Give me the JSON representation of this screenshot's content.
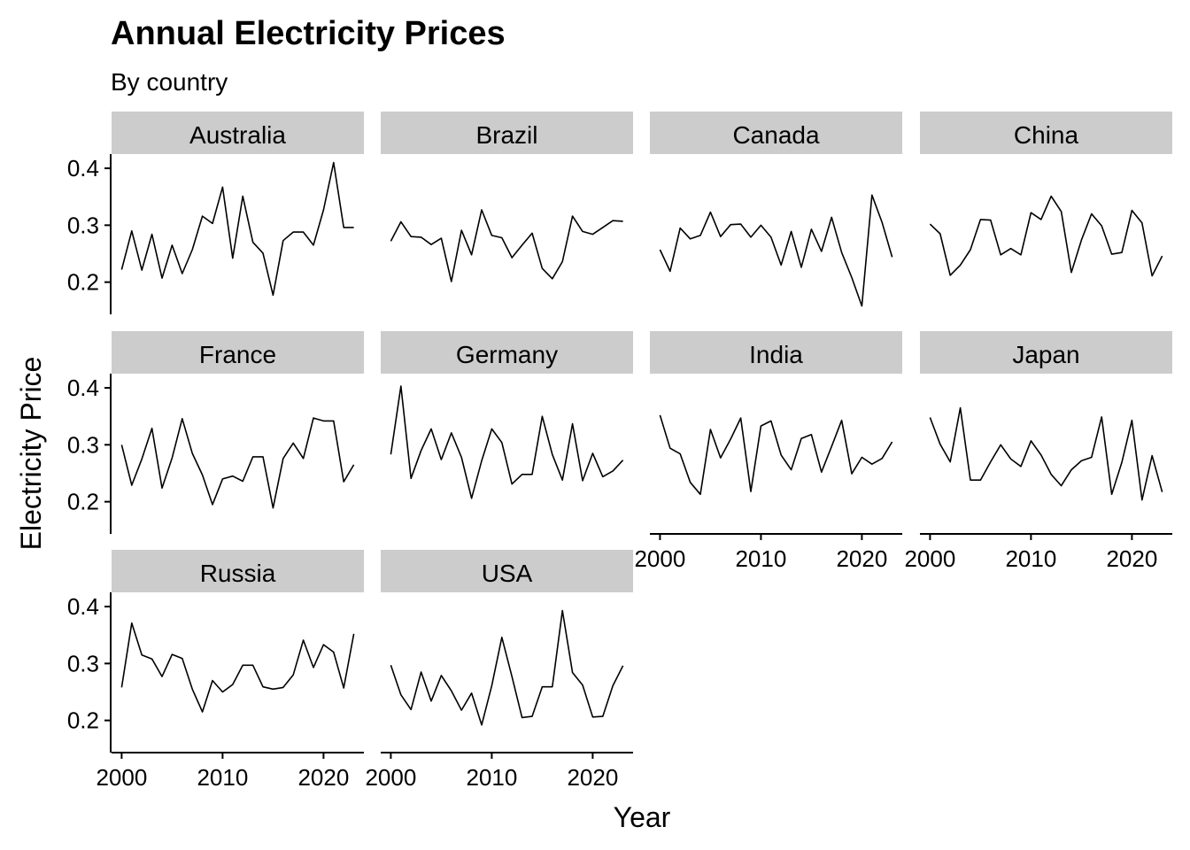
{
  "chart_data": {
    "type": "line",
    "title": "Annual Electricity Prices",
    "subtitle": "By country",
    "xlabel": "Year",
    "ylabel": "Electricity Price",
    "xlim": [
      1999,
      2024
    ],
    "ylim": [
      0.145,
      0.425
    ],
    "x_ticks": [
      2000,
      2010,
      2020
    ],
    "y_ticks": [
      0.2,
      0.3,
      0.4
    ],
    "y_tick_labels": [
      "0.2",
      "0.3",
      "0.4"
    ],
    "grid": false,
    "facets_ncol": 4,
    "colors": {
      "line": "#000000",
      "strip": "#cccccc",
      "axis": "#000000",
      "text": "#000000"
    },
    "x": [
      2000,
      2001,
      2002,
      2003,
      2004,
      2005,
      2006,
      2007,
      2008,
      2009,
      2010,
      2011,
      2012,
      2013,
      2014,
      2015,
      2016,
      2017,
      2018,
      2019,
      2020,
      2021,
      2022,
      2023
    ],
    "series": [
      {
        "name": "Australia",
        "values": [
          0.222,
          0.29,
          0.221,
          0.284,
          0.207,
          0.265,
          0.215,
          0.257,
          0.316,
          0.303,
          0.367,
          0.242,
          0.351,
          0.27,
          0.251,
          0.177,
          0.273,
          0.288,
          0.288,
          0.265,
          0.327,
          0.41,
          0.296,
          0.296
        ]
      },
      {
        "name": "Brazil",
        "values": [
          0.272,
          0.306,
          0.28,
          0.279,
          0.266,
          0.277,
          0.201,
          0.291,
          0.248,
          0.327,
          0.282,
          0.278,
          0.243,
          0.265,
          0.286,
          0.224,
          0.206,
          0.236,
          0.316,
          0.289,
          0.284,
          0.296,
          0.308,
          0.307
        ]
      },
      {
        "name": "Canada",
        "values": [
          0.257,
          0.219,
          0.295,
          0.276,
          0.282,
          0.323,
          0.28,
          0.301,
          0.302,
          0.279,
          0.3,
          0.279,
          0.23,
          0.289,
          0.226,
          0.293,
          0.254,
          0.314,
          0.252,
          0.208,
          0.158,
          0.353,
          0.305,
          0.244
        ]
      },
      {
        "name": "China",
        "values": [
          0.302,
          0.285,
          0.212,
          0.23,
          0.257,
          0.31,
          0.309,
          0.248,
          0.259,
          0.248,
          0.322,
          0.31,
          0.351,
          0.324,
          0.217,
          0.274,
          0.32,
          0.299,
          0.249,
          0.252,
          0.326,
          0.304,
          0.211,
          0.246
        ]
      },
      {
        "name": "France",
        "values": [
          0.3,
          0.229,
          0.275,
          0.329,
          0.224,
          0.277,
          0.346,
          0.285,
          0.247,
          0.195,
          0.24,
          0.245,
          0.236,
          0.279,
          0.279,
          0.189,
          0.276,
          0.303,
          0.276,
          0.347,
          0.342,
          0.342,
          0.235,
          0.265
        ]
      },
      {
        "name": "Germany",
        "values": [
          0.283,
          0.403,
          0.241,
          0.29,
          0.328,
          0.274,
          0.321,
          0.278,
          0.206,
          0.272,
          0.328,
          0.304,
          0.231,
          0.248,
          0.248,
          0.35,
          0.283,
          0.238,
          0.337,
          0.237,
          0.285,
          0.244,
          0.254,
          0.273
        ]
      },
      {
        "name": "India",
        "values": [
          0.352,
          0.294,
          0.284,
          0.234,
          0.213,
          0.327,
          0.277,
          0.31,
          0.347,
          0.218,
          0.333,
          0.342,
          0.282,
          0.256,
          0.311,
          0.318,
          0.252,
          0.297,
          0.343,
          0.249,
          0.278,
          0.266,
          0.276,
          0.305
        ]
      },
      {
        "name": "Japan",
        "values": [
          0.348,
          0.301,
          0.27,
          0.365,
          0.238,
          0.238,
          0.27,
          0.3,
          0.275,
          0.262,
          0.307,
          0.282,
          0.248,
          0.228,
          0.256,
          0.272,
          0.278,
          0.349,
          0.213,
          0.269,
          0.343,
          0.203,
          0.281,
          0.217
        ]
      },
      {
        "name": "Russia",
        "values": [
          0.258,
          0.371,
          0.315,
          0.308,
          0.277,
          0.316,
          0.309,
          0.255,
          0.215,
          0.27,
          0.25,
          0.263,
          0.297,
          0.297,
          0.259,
          0.255,
          0.258,
          0.28,
          0.341,
          0.293,
          0.333,
          0.32,
          0.257,
          0.352
        ]
      },
      {
        "name": "USA",
        "values": [
          0.297,
          0.245,
          0.219,
          0.285,
          0.234,
          0.279,
          0.252,
          0.218,
          0.248,
          0.192,
          0.261,
          0.346,
          0.277,
          0.205,
          0.207,
          0.259,
          0.259,
          0.393,
          0.284,
          0.262,
          0.206,
          0.207,
          0.261,
          0.296
        ]
      }
    ]
  }
}
